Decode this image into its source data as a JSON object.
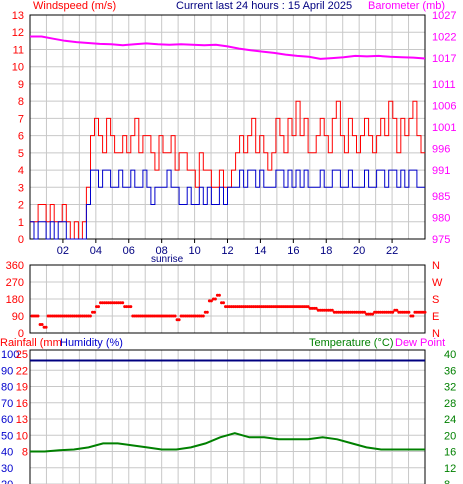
{
  "header": {
    "left_title": "Windspeed (m/s)",
    "center_title": "Current last 24 hours : 15 April 2025",
    "right_title": "Barometer (mb)"
  },
  "wind_panel": {
    "sunrise_label": "sunrise",
    "x_ticks": [
      "02",
      "04",
      "06",
      "08",
      "10",
      "12",
      "14",
      "16",
      "18",
      "20",
      "22"
    ],
    "left_ticks": [
      "13",
      "12",
      "11",
      "10",
      "9",
      "8",
      "7",
      "6",
      "5",
      "4",
      "3",
      "2",
      "1",
      "0"
    ],
    "right_ticks": [
      "1027",
      "1022",
      "1017",
      "1011",
      "1006",
      "1001",
      "996",
      "991",
      "985",
      "980",
      "975"
    ]
  },
  "dir_panel": {
    "left_ticks": [
      "360",
      "270",
      "180",
      "90",
      "0"
    ],
    "right_ticks": [
      "N",
      "W",
      "S",
      "E",
      "N"
    ]
  },
  "bottom_panel": {
    "rain_label": "Rainfall (mm",
    "humidity_label": "Humidity (%)",
    "temperature_label": "Temperature (°C)",
    "dewpoint_label": "Dew Point",
    "humidity_ticks": [
      "100",
      "90",
      "80",
      "70",
      "60",
      "50",
      "40",
      "30",
      "20"
    ],
    "rain_ticks": [
      "25",
      "22",
      "19",
      "16",
      "13",
      "10",
      "8"
    ],
    "temp_ticks": [
      "40",
      "36",
      "32",
      "28",
      "24",
      "20",
      "16",
      "12",
      "8"
    ]
  },
  "colors": {
    "wind_gust": "#ff0000",
    "wind_avg": "#0000cc",
    "barometer": "#ff00ff",
    "direction": "#ff0000",
    "humidity": "#000080",
    "temperature": "#008000",
    "grid": "#c8c8c8"
  },
  "chart_data": [
    {
      "type": "line",
      "x_range_hours": [
        0,
        24
      ],
      "series": [
        {
          "name": "Windspeed (m/s)",
          "axis": "left",
          "ylim": [
            0,
            13
          ],
          "values": [
            1,
            1,
            2,
            2,
            1,
            2,
            1,
            1,
            2,
            1,
            0,
            1,
            0,
            1,
            3,
            6,
            7,
            6,
            5,
            7,
            6,
            5,
            5,
            6,
            5,
            6,
            7,
            5,
            6,
            6,
            5,
            4,
            6,
            5,
            5,
            6,
            4,
            5,
            5,
            4,
            4,
            3,
            5,
            4,
            4,
            3,
            3,
            4,
            3,
            3,
            4,
            5,
            6,
            5,
            6,
            7,
            5,
            6,
            5,
            4,
            5,
            7,
            6,
            5,
            7,
            6,
            8,
            6,
            7,
            5,
            5,
            6,
            7,
            6,
            5,
            7,
            8,
            6,
            5,
            7,
            6,
            5,
            6,
            7,
            6,
            5,
            6,
            7,
            6,
            8,
            7,
            5,
            7,
            6,
            7,
            8,
            6,
            5
          ]
        },
        {
          "name": "Windspeed avg",
          "axis": "left",
          "ylim": [
            0,
            13
          ],
          "values": [
            1,
            0,
            1,
            1,
            0,
            1,
            0,
            1,
            1,
            0,
            0,
            0,
            0,
            0,
            2,
            4,
            4,
            3,
            4,
            4,
            3,
            3,
            4,
            3,
            3,
            4,
            3,
            3,
            4,
            3,
            2,
            3,
            3,
            3,
            4,
            3,
            3,
            2,
            2,
            3,
            2,
            2,
            3,
            2,
            3,
            2,
            2,
            3,
            2,
            3,
            3,
            3,
            4,
            3,
            4,
            4,
            3,
            4,
            3,
            3,
            3,
            4,
            4,
            3,
            4,
            3,
            4,
            3,
            4,
            3,
            3,
            3,
            4,
            3,
            3,
            4,
            4,
            3,
            3,
            4,
            3,
            3,
            3,
            4,
            3,
            3,
            4,
            4,
            3,
            4,
            4,
            3,
            4,
            3,
            4,
            4,
            3,
            3
          ]
        },
        {
          "name": "Barometer (mb)",
          "axis": "right",
          "ylim": [
            975,
            1027
          ],
          "values": [
            1022,
            1022,
            1021.5,
            1021,
            1020.7,
            1020.5,
            1020.3,
            1020.2,
            1020,
            1020.2,
            1020.4,
            1020.2,
            1020.1,
            1020.2,
            1020.1,
            1020,
            1020.1,
            1019.7,
            1019.2,
            1018.8,
            1018.5,
            1018.2,
            1017.8,
            1017.5,
            1017.3,
            1016.8,
            1017,
            1017.2,
            1017.5,
            1017.4,
            1017.5,
            1017.3,
            1017.2,
            1017.1,
            1016.9
          ]
        }
      ]
    },
    {
      "type": "scatter",
      "name": "Wind direction",
      "ylim": [
        0,
        360
      ],
      "x_range_hours": [
        0,
        24
      ],
      "values": [
        90,
        90,
        45,
        30,
        90,
        90,
        90,
        90,
        90,
        90,
        90,
        90,
        90,
        90,
        90,
        110,
        140,
        160,
        160,
        160,
        160,
        160,
        160,
        140,
        140,
        90,
        90,
        90,
        90,
        90,
        90,
        90,
        90,
        90,
        90,
        90,
        70,
        90,
        90,
        90,
        90,
        90,
        90,
        110,
        170,
        180,
        200,
        160,
        140,
        140,
        140,
        140,
        140,
        140,
        140,
        140,
        140,
        140,
        140,
        140,
        140,
        140,
        140,
        140,
        140,
        140,
        140,
        140,
        140,
        130,
        130,
        120,
        120,
        120,
        120,
        110,
        110,
        110,
        110,
        110,
        110,
        110,
        110,
        100,
        100,
        110,
        110,
        110,
        110,
        110,
        120,
        110,
        110,
        110,
        90,
        110,
        110,
        110
      ]
    },
    {
      "type": "line",
      "x_range_hours": [
        0,
        24
      ],
      "series": [
        {
          "name": "Humidity (%)",
          "axis": "left",
          "ylim": [
            20,
            100
          ],
          "values": [
            96,
            96,
            96,
            96,
            96,
            96,
            96,
            96,
            96,
            96,
            96,
            96,
            96,
            96,
            96,
            96,
            96,
            96,
            96,
            96,
            96,
            96,
            96,
            96,
            96
          ]
        },
        {
          "name": "Temperature (°C)",
          "axis": "right",
          "ylim": [
            8,
            40
          ],
          "values": [
            16,
            16,
            16.3,
            16.5,
            17,
            18,
            18,
            17.5,
            17,
            16.5,
            16.5,
            17,
            18,
            19.5,
            20.5,
            19.5,
            19.5,
            19,
            19,
            19,
            19.5,
            19,
            18,
            17,
            16.5,
            16.5,
            16.5,
            16.5
          ]
        }
      ]
    }
  ]
}
